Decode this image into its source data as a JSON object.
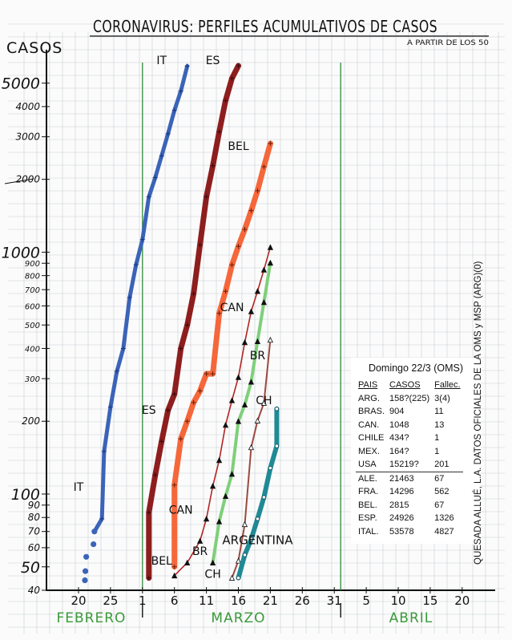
{
  "chart_data": {
    "type": "line",
    "title": "CORONAVIRUS: PERFILES ACUMULATIVOS DE CASOS",
    "subtitle": "A PARTIR DE LOS 50",
    "ylabel": "CASOS",
    "y_scale": "log",
    "ylim": [
      40,
      6500
    ],
    "y_ticks": [
      {
        "value": 40,
        "label": "40"
      },
      {
        "value": 50,
        "label": "50"
      },
      {
        "value": 60,
        "label": "60"
      },
      {
        "value": 70,
        "label": "70"
      },
      {
        "value": 80,
        "label": "80"
      },
      {
        "value": 90,
        "label": "90"
      },
      {
        "value": 100,
        "label": "100"
      },
      {
        "value": 200,
        "label": "200"
      },
      {
        "value": 300,
        "label": "300"
      },
      {
        "value": 400,
        "label": "400"
      },
      {
        "value": 500,
        "label": "500"
      },
      {
        "value": 600,
        "label": "600"
      },
      {
        "value": 700,
        "label": "700"
      },
      {
        "value": 800,
        "label": "800"
      },
      {
        "value": 900,
        "label": "900"
      },
      {
        "value": 1000,
        "label": "1000"
      },
      {
        "value": 2000,
        "label": "2000"
      },
      {
        "value": 3000,
        "label": "3000"
      },
      {
        "value": 4000,
        "label": "4000"
      },
      {
        "value": 5000,
        "label": "5000"
      }
    ],
    "x_ticks": [
      {
        "date": "2020-02-20",
        "label": "20"
      },
      {
        "date": "2020-02-25",
        "label": "25"
      },
      {
        "date": "2020-03-01",
        "label": "1"
      },
      {
        "date": "2020-03-06",
        "label": "6"
      },
      {
        "date": "2020-03-11",
        "label": "11"
      },
      {
        "date": "2020-03-16",
        "label": "16"
      },
      {
        "date": "2020-03-21",
        "label": "21"
      },
      {
        "date": "2020-03-26",
        "label": "26"
      },
      {
        "date": "2020-03-31",
        "label": "31"
      },
      {
        "date": "2020-04-05",
        "label": "5"
      },
      {
        "date": "2020-04-10",
        "label": "10"
      },
      {
        "date": "2020-04-15",
        "label": "15"
      },
      {
        "date": "2020-04-20",
        "label": "20"
      }
    ],
    "month_labels": [
      {
        "label": "FEBRERO",
        "date": "2020-02-22"
      },
      {
        "label": "MARZO",
        "date": "2020-03-16"
      },
      {
        "label": "ABRIL",
        "date": "2020-04-12"
      }
    ],
    "month_dividers": [
      "2020-03-01",
      "2020-04-01"
    ],
    "grid": true,
    "series": [
      {
        "name": "IT",
        "color": "#3b64b8",
        "width": 5,
        "points": [
          [
            "2020-02-21",
            44
          ],
          [
            "2020-02-21",
            48
          ],
          [
            "2020-02-21",
            55
          ],
          [
            "2020-02-22",
            62
          ],
          [
            "2020-02-22",
            70
          ],
          [
            "2020-02-23",
            79
          ],
          [
            "2020-02-24",
            150
          ],
          [
            "2020-02-25",
            229
          ],
          [
            "2020-02-26",
            322
          ],
          [
            "2020-02-27",
            400
          ],
          [
            "2020-02-28",
            650
          ],
          [
            "2020-02-29",
            888
          ],
          [
            "2020-03-01",
            1128
          ],
          [
            "2020-03-02",
            1694
          ],
          [
            "2020-03-03",
            2036
          ],
          [
            "2020-03-04",
            2502
          ],
          [
            "2020-03-05",
            3089
          ],
          [
            "2020-03-06",
            3858
          ],
          [
            "2020-03-07",
            4636
          ],
          [
            "2020-03-08",
            5883
          ]
        ],
        "dotted_until": 5
      },
      {
        "name": "ES",
        "color": "#8e1e1e",
        "width": 7,
        "points": [
          [
            "2020-03-02",
            45
          ],
          [
            "2020-03-02",
            84
          ],
          [
            "2020-03-03",
            120
          ],
          [
            "2020-03-04",
            165
          ],
          [
            "2020-03-05",
            222
          ],
          [
            "2020-03-06",
            259
          ],
          [
            "2020-03-07",
            400
          ],
          [
            "2020-03-08",
            500
          ],
          [
            "2020-03-09",
            673
          ],
          [
            "2020-03-10",
            1073
          ],
          [
            "2020-03-11",
            1695
          ],
          [
            "2020-03-12",
            2277
          ],
          [
            "2020-03-13",
            3146
          ],
          [
            "2020-03-14",
            4231
          ],
          [
            "2020-03-15",
            5232
          ],
          [
            "2020-03-16",
            5900
          ]
        ]
      },
      {
        "name": "BEL",
        "color": "#f5673a",
        "width": 7,
        "points": [
          [
            "2020-03-06",
            50
          ],
          [
            "2020-03-06",
            109
          ],
          [
            "2020-03-07",
            169
          ],
          [
            "2020-03-08",
            200
          ],
          [
            "2020-03-09",
            239
          ],
          [
            "2020-03-10",
            267
          ],
          [
            "2020-03-11",
            314
          ],
          [
            "2020-03-12",
            314
          ],
          [
            "2020-03-13",
            559
          ],
          [
            "2020-03-14",
            689
          ],
          [
            "2020-03-15",
            886
          ],
          [
            "2020-03-16",
            1058
          ],
          [
            "2020-03-17",
            1243
          ],
          [
            "2020-03-18",
            1486
          ],
          [
            "2020-03-19",
            1795
          ],
          [
            "2020-03-20",
            2257
          ],
          [
            "2020-03-21",
            2815
          ]
        ]
      },
      {
        "name": "CAN",
        "color": "#b42424",
        "width": 1.6,
        "points": [
          [
            "2020-03-06",
            46
          ],
          [
            "2020-03-08",
            52
          ],
          [
            "2020-03-10",
            64
          ],
          [
            "2020-03-11",
            79
          ],
          [
            "2020-03-12",
            108
          ],
          [
            "2020-03-13",
            138
          ],
          [
            "2020-03-14",
            193
          ],
          [
            "2020-03-15",
            244
          ],
          [
            "2020-03-16",
            304
          ],
          [
            "2020-03-17",
            424
          ],
          [
            "2020-03-18",
            569
          ],
          [
            "2020-03-19",
            690
          ],
          [
            "2020-03-20",
            846
          ],
          [
            "2020-03-21",
            1048
          ]
        ]
      },
      {
        "name": "BR",
        "color": "#7fcf7a",
        "width": 4,
        "points": [
          [
            "2020-03-12",
            52
          ],
          [
            "2020-03-13",
            77
          ],
          [
            "2020-03-14",
            98
          ],
          [
            "2020-03-15",
            121
          ],
          [
            "2020-03-16",
            200
          ],
          [
            "2020-03-17",
            234
          ],
          [
            "2020-03-18",
            291
          ],
          [
            "2020-03-19",
            428
          ],
          [
            "2020-03-20",
            621
          ],
          [
            "2020-03-21",
            904
          ]
        ]
      },
      {
        "name": "CH",
        "color": "#9a4a40",
        "width": 2,
        "points": [
          [
            "2020-03-15",
            45
          ],
          [
            "2020-03-16",
            53
          ],
          [
            "2020-03-17",
            75
          ],
          [
            "2020-03-18",
            156
          ],
          [
            "2020-03-19",
            201
          ],
          [
            "2020-03-20",
            238
          ],
          [
            "2020-03-21",
            434
          ]
        ]
      },
      {
        "name": "ARGENTINA",
        "color": "#1f8a96",
        "width": 6,
        "points": [
          [
            "2020-03-16",
            45
          ],
          [
            "2020-03-17",
            56
          ],
          [
            "2020-03-18",
            65
          ],
          [
            "2020-03-19",
            79
          ],
          [
            "2020-03-20",
            97
          ],
          [
            "2020-03-21",
            128
          ],
          [
            "2020-03-22",
            158
          ],
          [
            "2020-03-22",
            225
          ]
        ]
      }
    ],
    "series_labels": [
      {
        "name": "IT",
        "date": "2020-03-04",
        "value": 6000
      },
      {
        "name": "ES",
        "date": "2020-03-12",
        "value": 6000
      },
      {
        "name": "BEL",
        "date": "2020-03-16",
        "value": 2650
      },
      {
        "name": "CAN",
        "date": "2020-03-15",
        "value": 570
      },
      {
        "name": "BR",
        "date": "2020-03-19",
        "value": 360
      },
      {
        "name": "CH",
        "date": "2020-03-20",
        "value": 235
      },
      {
        "name": "ARGENTINA",
        "date": "2020-03-19",
        "value": 62
      },
      {
        "name": "IT",
        "date": "2020-02-20",
        "value": 103
      },
      {
        "name": "ES",
        "date": "2020-03-02",
        "value": 215
      },
      {
        "name": "BEL",
        "date": "2020-03-04",
        "value": 51
      },
      {
        "name": "CAN",
        "date": "2020-03-07",
        "value": 83
      },
      {
        "name": "BR",
        "date": "2020-03-10",
        "value": 56
      },
      {
        "name": "CH",
        "date": "2020-03-12",
        "value": 45
      }
    ]
  },
  "table": {
    "title": "Domingo 22/3 (OMS)",
    "headers": [
      "PAIS",
      "CASOS",
      "Fallec."
    ],
    "rows": [
      [
        "ARG.",
        "158?(225)",
        "3(4)"
      ],
      [
        "BRAS.",
        "904",
        "11"
      ],
      [
        "CAN.",
        "1048",
        "13"
      ],
      [
        "CHILE",
        "434?",
        "1"
      ],
      [
        "MEX.",
        "164?",
        "1"
      ],
      [
        "USA",
        "15219?",
        "201"
      ],
      [
        "ALE.",
        "21463",
        "67"
      ],
      [
        "FRA.",
        "14296",
        "562"
      ],
      [
        "BEL.",
        "2815",
        "67"
      ],
      [
        "ESP.",
        "24926",
        "1326"
      ],
      [
        "ITAL.",
        "53578",
        "4827"
      ]
    ]
  },
  "credit": "QUESADA ALLUÉ, L.A. DATOS OFICIALES DE LA OMS y MSP (ARG)(0)",
  "colors": {
    "grid": "#c9ced4",
    "divider": "#2e8b3a",
    "month": "#3a9a3a"
  }
}
